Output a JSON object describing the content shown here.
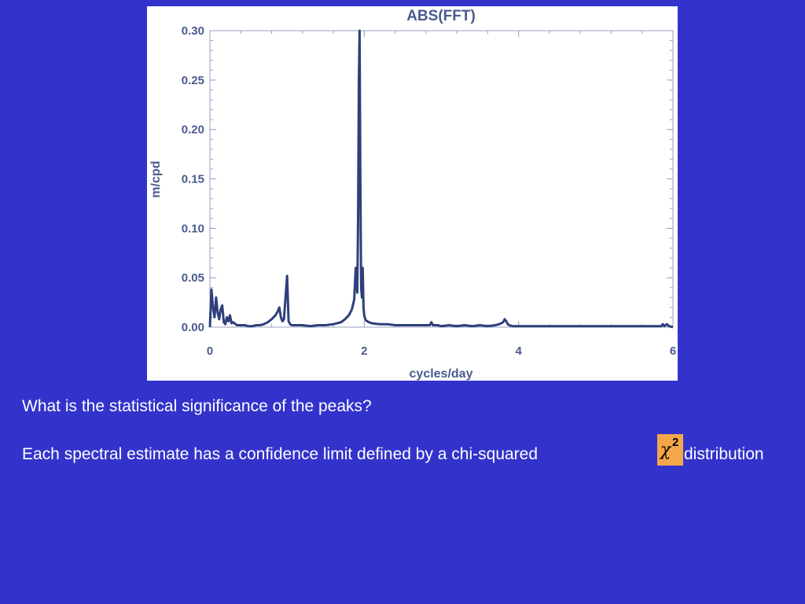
{
  "slide": {
    "question": "What is the statistical significance of the peaks?",
    "statement": "Each spectral estimate has a confidence limit defined by a chi-squared",
    "chi_symbol": "χ",
    "chi_exponent": "2",
    "statement_end": "distribution",
    "colors": {
      "background": "#3333cc",
      "text": "#ffffff",
      "chi_box": "#f4a64a",
      "line": "#2e3f7a",
      "axis_text": "#4a5a8c"
    }
  },
  "chart_data": {
    "type": "line",
    "title": "ABS(FFT)",
    "xlabel": "cycles/day",
    "ylabel": "m/cpd",
    "xlim": [
      0,
      6
    ],
    "ylim": [
      0,
      0.3
    ],
    "x_ticks": [
      0,
      2,
      4,
      6
    ],
    "x_tick_labels": [
      "0",
      "2",
      "4",
      "6"
    ],
    "y_ticks": [
      0,
      0.05,
      0.1,
      0.15,
      0.2,
      0.25,
      0.3
    ],
    "y_tick_labels": [
      "0.00",
      "0.05",
      "0.10",
      "0.15",
      "0.20",
      "0.25",
      "0.30"
    ],
    "grid": false,
    "series": [
      {
        "x": [
          0.0,
          0.02,
          0.04,
          0.06,
          0.08,
          0.1,
          0.12,
          0.14,
          0.16,
          0.18,
          0.2,
          0.22,
          0.24,
          0.26,
          0.28,
          0.3,
          0.35,
          0.4,
          0.45,
          0.5,
          0.55,
          0.6,
          0.65,
          0.7,
          0.75,
          0.8,
          0.85,
          0.88,
          0.9,
          0.92,
          0.94,
          0.96,
          0.98,
          1.0,
          1.01,
          1.02,
          1.04,
          1.06,
          1.1,
          1.2,
          1.3,
          1.4,
          1.5,
          1.6,
          1.7,
          1.75,
          1.8,
          1.84,
          1.87,
          1.89,
          1.9,
          1.91,
          1.92,
          1.93,
          1.94,
          1.95,
          1.96,
          1.97,
          1.98,
          1.99,
          2.0,
          2.01,
          2.02,
          2.04,
          2.06,
          2.1,
          2.2,
          2.3,
          2.4,
          2.5,
          2.6,
          2.7,
          2.8,
          2.85,
          2.87,
          2.89,
          2.95,
          3.0,
          3.1,
          3.2,
          3.3,
          3.4,
          3.5,
          3.6,
          3.7,
          3.75,
          3.8,
          3.82,
          3.84,
          3.86,
          3.88,
          3.92,
          4.0,
          4.1,
          4.2,
          4.3,
          4.4,
          4.5,
          4.6,
          4.7,
          4.8,
          4.9,
          5.0,
          5.1,
          5.2,
          5.3,
          5.4,
          5.5,
          5.6,
          5.7,
          5.8,
          5.85,
          5.87,
          5.89,
          5.92,
          5.95,
          6.0
        ],
        "y": [
          0.0,
          0.038,
          0.02,
          0.01,
          0.03,
          0.015,
          0.008,
          0.018,
          0.022,
          0.005,
          0.003,
          0.01,
          0.006,
          0.012,
          0.004,
          0.005,
          0.002,
          0.002,
          0.002,
          0.001,
          0.001,
          0.002,
          0.002,
          0.003,
          0.005,
          0.008,
          0.012,
          0.016,
          0.02,
          0.01,
          0.006,
          0.008,
          0.03,
          0.052,
          0.03,
          0.006,
          0.003,
          0.002,
          0.002,
          0.002,
          0.001,
          0.002,
          0.002,
          0.003,
          0.005,
          0.008,
          0.012,
          0.018,
          0.028,
          0.06,
          0.045,
          0.035,
          0.11,
          0.25,
          0.3,
          0.15,
          0.04,
          0.03,
          0.06,
          0.02,
          0.012,
          0.009,
          0.007,
          0.006,
          0.005,
          0.004,
          0.003,
          0.003,
          0.002,
          0.002,
          0.002,
          0.002,
          0.002,
          0.002,
          0.005,
          0.002,
          0.002,
          0.001,
          0.002,
          0.001,
          0.002,
          0.001,
          0.002,
          0.001,
          0.002,
          0.003,
          0.005,
          0.008,
          0.006,
          0.003,
          0.002,
          0.001,
          0.001,
          0.001,
          0.001,
          0.001,
          0.001,
          0.001,
          0.001,
          0.001,
          0.001,
          0.001,
          0.001,
          0.001,
          0.001,
          0.001,
          0.001,
          0.001,
          0.001,
          0.001,
          0.001,
          0.001,
          0.003,
          0.001,
          0.003,
          0.001,
          0.0
        ]
      }
    ]
  }
}
